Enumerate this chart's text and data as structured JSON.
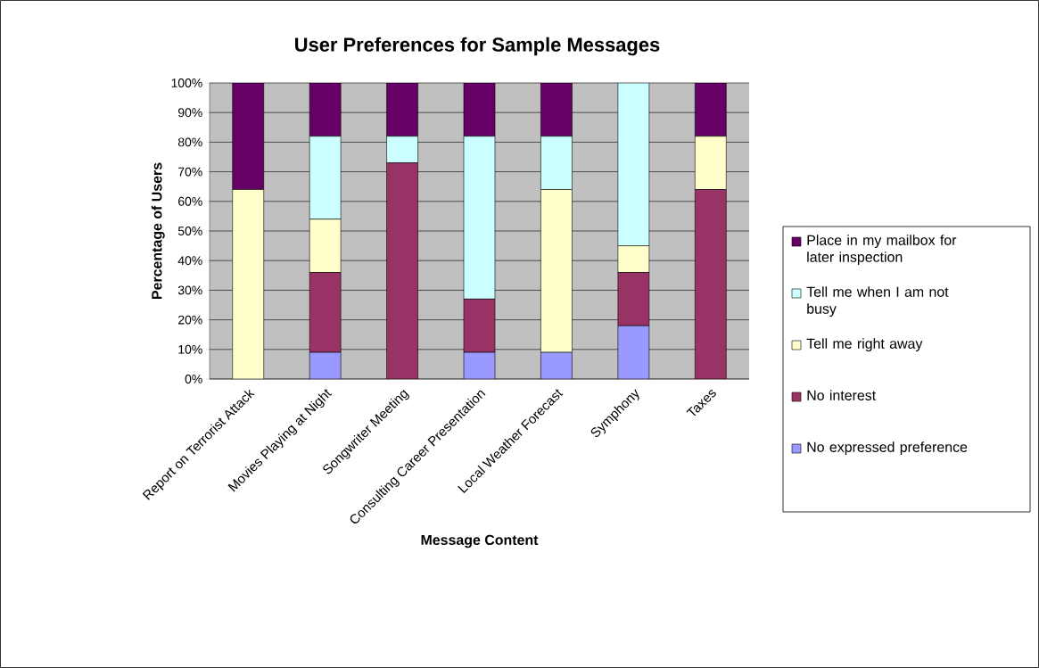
{
  "chart_data": {
    "type": "bar",
    "stacked": true,
    "title": "User Preferences for Sample Messages",
    "xlabel": "Message Content",
    "ylabel": "Percentage of Users",
    "categories": [
      "Report on Terrorist Attack",
      "Movies Playing at Night",
      "Songwriter Meeting",
      "Consulting Career Presentation",
      "Local Weather Forecast",
      "Symphony",
      "Taxes"
    ],
    "series": [
      {
        "name": "No expressed preference",
        "color": "#9999ff",
        "values": [
          0,
          9,
          0,
          9,
          9,
          18,
          0
        ]
      },
      {
        "name": "No interest",
        "color": "#993366",
        "values": [
          0,
          27,
          73,
          18,
          0,
          18,
          64
        ]
      },
      {
        "name": "Tell me right away",
        "color": "#ffffcc",
        "values": [
          64,
          18,
          0,
          0,
          55,
          9,
          18
        ]
      },
      {
        "name": "Tell me when I am not busy",
        "color": "#ccffff",
        "values": [
          0,
          28,
          9,
          55,
          18,
          55,
          0
        ]
      },
      {
        "name": "Place in my mailbox for later inspection",
        "color": "#660066",
        "values": [
          36,
          18,
          18,
          18,
          18,
          0,
          18
        ]
      }
    ],
    "ylim": [
      0,
      100
    ],
    "yticks": [
      {
        "value": 0,
        "label": "0%"
      },
      {
        "value": 10,
        "label": "10%"
      },
      {
        "value": 20,
        "label": "20%"
      },
      {
        "value": 30,
        "label": "30%"
      },
      {
        "value": 40,
        "label": "40%"
      },
      {
        "value": 50,
        "label": "50%"
      },
      {
        "value": 60,
        "label": "60%"
      },
      {
        "value": 70,
        "label": "70%"
      },
      {
        "value": 80,
        "label": "80%"
      },
      {
        "value": 90,
        "label": "90%"
      },
      {
        "value": 100,
        "label": "100%"
      }
    ],
    "grid": "y",
    "legend": "right"
  }
}
